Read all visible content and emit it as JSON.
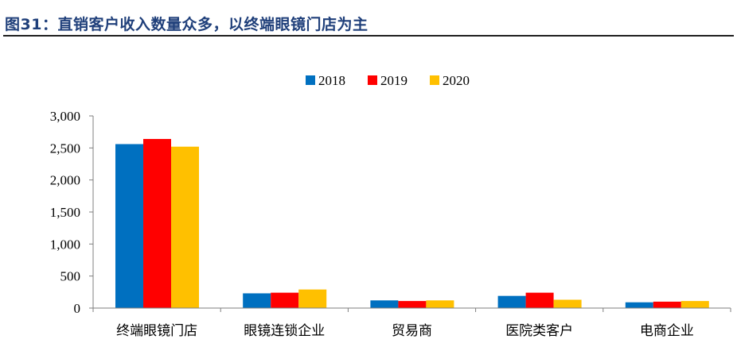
{
  "figure": {
    "title": "图31：直销客户收入数量众多，以终端眼镜门店为主"
  },
  "colors": {
    "title": "#1f3f7a",
    "rule": "#1f1f1f",
    "axis": "#7f7f7f"
  },
  "chart_data": {
    "type": "bar",
    "categories": [
      "终端眼镜门店",
      "眼镜连锁企业",
      "贸易商",
      "医院类客户",
      "电商企业"
    ],
    "series": [
      {
        "name": "2018",
        "color": "#0070c0",
        "values": [
          2560,
          230,
          120,
          190,
          90
        ]
      },
      {
        "name": "2019",
        "color": "#ff0000",
        "values": [
          2640,
          240,
          110,
          240,
          100
        ]
      },
      {
        "name": "2020",
        "color": "#ffc000",
        "values": [
          2520,
          290,
          120,
          130,
          110
        ]
      }
    ],
    "ylim": [
      0,
      3000
    ],
    "yticks": [
      0,
      500,
      1000,
      1500,
      2000,
      2500,
      3000
    ],
    "ytick_labels": [
      "0",
      "500",
      "1,000",
      "1,500",
      "2,000",
      "2,500",
      "3,000"
    ],
    "legend_position": "top-center",
    "grid": false,
    "xlabel": "",
    "ylabel": ""
  }
}
